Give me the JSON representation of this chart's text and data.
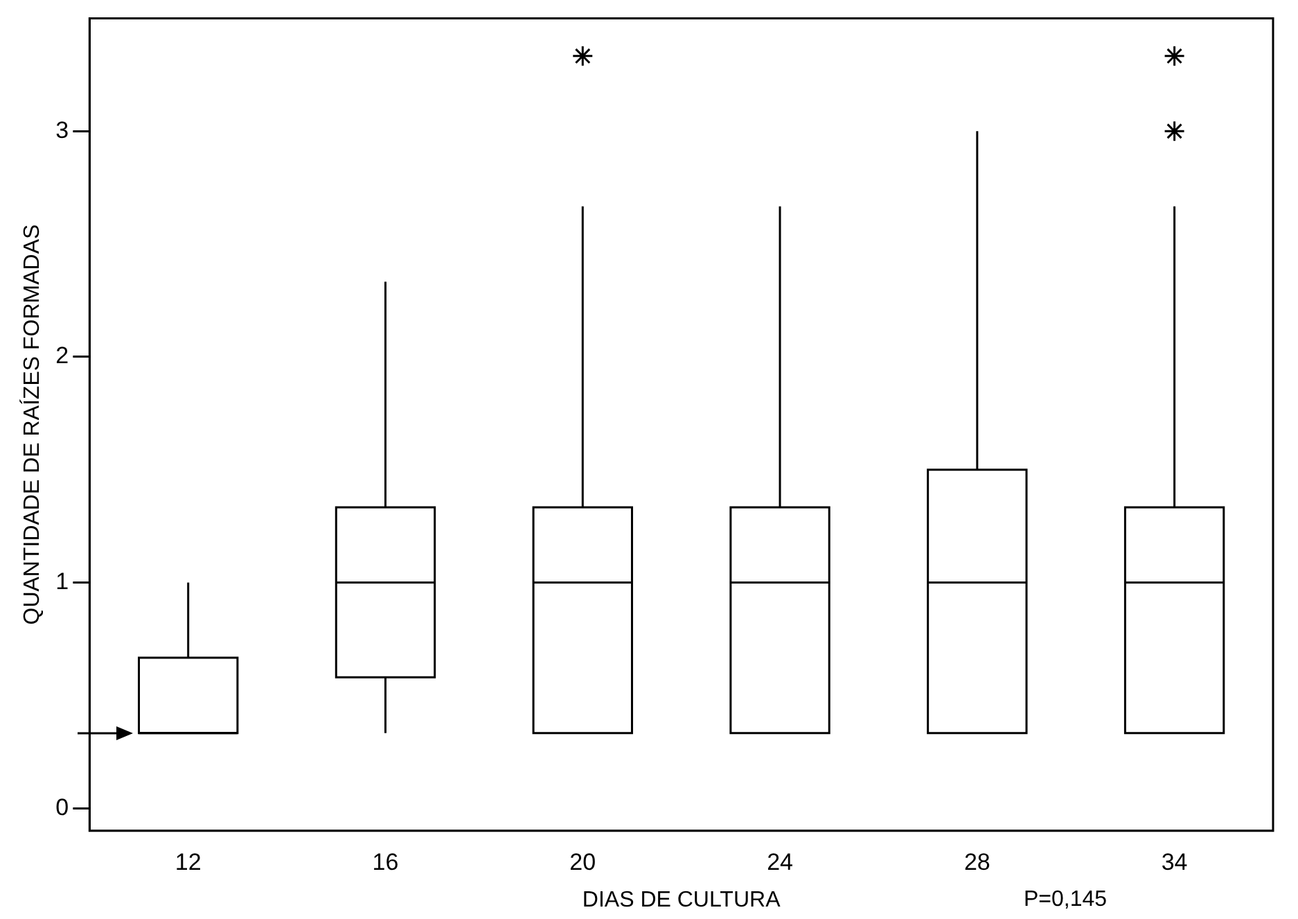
{
  "chart_data": {
    "type": "box",
    "xlabel": "DIAS DE CULTURA",
    "ylabel": "QUANTIDADE DE RAÍZES FORMADAS",
    "annotations": [
      "P=0,145"
    ],
    "categories": [
      "12",
      "16",
      "20",
      "24",
      "28",
      "34"
    ],
    "boxes": [
      {
        "low": 0.333,
        "q1": 0.333,
        "median": 0.333,
        "q3": 0.667,
        "high": 1
      },
      {
        "low": 0.333,
        "q1": 0.58,
        "median": 1,
        "q3": 1.333,
        "high": 2.333
      },
      {
        "low": 0.333,
        "q1": 0.333,
        "median": 1,
        "q3": 1.333,
        "high": 2.667,
        "outliers": [
          3.333
        ]
      },
      {
        "low": 0.333,
        "q1": 0.333,
        "median": 1,
        "q3": 1.333,
        "high": 2.667
      },
      {
        "low": 0.333,
        "q1": 0.333,
        "median": 1,
        "q3": 1.5,
        "high": 3
      },
      {
        "low": 0.333,
        "q1": 0.333,
        "median": 1,
        "q3": 1.333,
        "high": 2.667,
        "outliers": [
          3,
          3.333
        ]
      }
    ],
    "ylim": [
      -0.1,
      3.5
    ],
    "yticks": [
      0,
      1,
      2,
      3
    ],
    "grid": false,
    "legend": false,
    "marker": "star"
  }
}
